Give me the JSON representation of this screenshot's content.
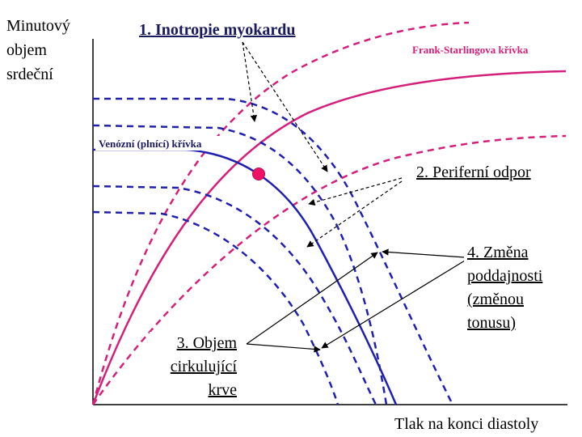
{
  "axes": {
    "y_label": [
      "Minutový",
      "objem",
      "srdeční"
    ],
    "x_label": "Tlak na konci diastoly"
  },
  "curves": {
    "frank_starling": "Frank-Starlingova křívka",
    "venous": "Venózní (plnící) křívka"
  },
  "factors": {
    "inotropy": "1. Inotropie myokardu",
    "resistance": "2. Periferní odpor",
    "volume": [
      "3. Objem",
      "cirkulující",
      "krve"
    ],
    "compliance": [
      "4. Změna",
      "poddajnosti",
      "(změnou",
      "tonusu)"
    ]
  }
}
